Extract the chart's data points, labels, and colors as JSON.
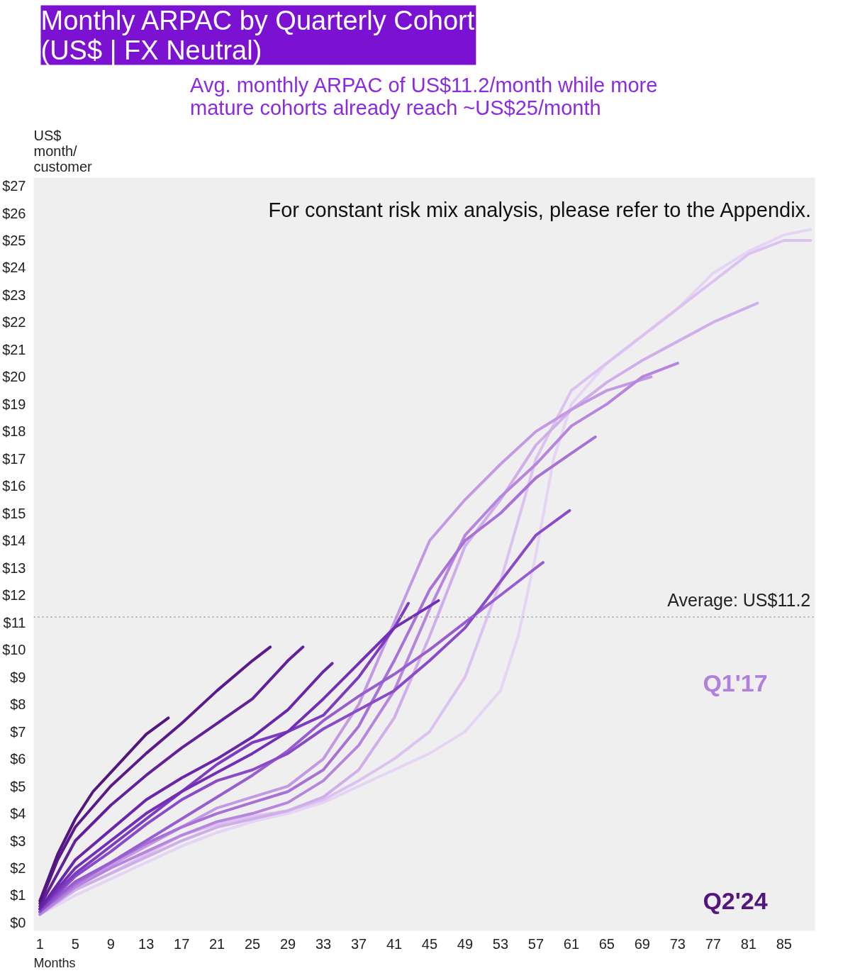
{
  "chart_data": {
    "type": "line",
    "title": "Monthly ARPAC by Quarterly Cohort\n(US$ | FX Neutral)",
    "subtitle": "Avg. monthly ARPAC of US$11.2/month while more\nmature cohorts already reach ~US$25/month",
    "ylabel": "US$\nmonth/\ncustomer",
    "xlabel": "Months",
    "annotations": [
      "For constant risk mix analysis, please refer to the Appendix.",
      "Q1'17",
      "Q2'24"
    ],
    "ref_lines": [
      {
        "axis": "y",
        "value": 11.2,
        "label": "Average: US$11.2",
        "color": "#999999",
        "line_style": "dotted"
      }
    ],
    "xlim": [
      0.3,
      88.5
    ],
    "xticks": [
      1,
      5,
      9,
      13,
      17,
      21,
      25,
      29,
      33,
      37,
      41,
      45,
      49,
      53,
      57,
      61,
      65,
      69,
      73,
      77,
      81,
      85
    ],
    "ylim": [
      -0.3,
      27.3
    ],
    "yticks": [
      {
        "value": 0,
        "label": "$0"
      },
      {
        "value": 1,
        "label": "$1"
      },
      {
        "value": 2,
        "label": "$2"
      },
      {
        "value": 3,
        "label": "$3"
      },
      {
        "value": 4,
        "label": "$4"
      },
      {
        "value": 5,
        "label": "$5"
      },
      {
        "value": 6,
        "label": "$6"
      },
      {
        "value": 7,
        "label": "$7"
      },
      {
        "value": 8,
        "label": "$8"
      },
      {
        "value": 9,
        "label": "$9"
      },
      {
        "value": 10,
        "label": "$10"
      },
      {
        "value": 11,
        "label": "$11"
      },
      {
        "value": 12,
        "label": "$12"
      },
      {
        "value": 13,
        "label": "$13"
      },
      {
        "value": 14,
        "label": "$14"
      },
      {
        "value": 15,
        "label": "$15"
      },
      {
        "value": 16,
        "label": "$16"
      },
      {
        "value": 17,
        "label": "$17"
      },
      {
        "value": 18,
        "label": "$18"
      },
      {
        "value": 19,
        "label": "$19"
      },
      {
        "value": 20,
        "label": "$20"
      },
      {
        "value": 21,
        "label": "$21"
      },
      {
        "value": 22,
        "label": "$22"
      },
      {
        "value": 23,
        "label": "$23"
      },
      {
        "value": 24,
        "label": "$24"
      },
      {
        "value": 25,
        "label": "$25"
      },
      {
        "value": 26,
        "label": "$26"
      },
      {
        "value": 27,
        "label": "$27"
      }
    ],
    "grid": false,
    "marker": "none",
    "line_style": "solid",
    "series": [
      {
        "color": "#e6d4f5",
        "x": [
          1,
          5,
          9,
          13,
          17,
          21,
          25,
          29,
          33,
          37,
          41,
          45,
          49,
          53,
          55,
          57,
          59,
          61,
          65,
          69,
          73,
          77,
          81,
          85,
          88
        ],
        "values": [
          0.3,
          1.0,
          1.6,
          2.2,
          2.8,
          3.3,
          3.7,
          4.0,
          4.4,
          5.0,
          5.6,
          6.2,
          7.0,
          8.5,
          10.5,
          13.5,
          17,
          19,
          20.5,
          21.5,
          22.5,
          23.8,
          24.6,
          25.2,
          25.4
        ]
      },
      {
        "color": "#dcc2f0",
        "x": [
          1,
          5,
          9,
          13,
          17,
          21,
          25,
          29,
          33,
          37,
          41,
          45,
          49,
          53,
          57,
          61,
          65,
          69,
          73,
          77,
          81,
          85,
          88
        ],
        "values": [
          0.3,
          1.2,
          1.8,
          2.5,
          3.2,
          3.6,
          3.9,
          4.1,
          4.5,
          5.2,
          6.0,
          7.0,
          9.0,
          12.5,
          17.0,
          19.5,
          20.5,
          21.5,
          22.5,
          23.5,
          24.5,
          25.0,
          25.0
        ]
      },
      {
        "color": "#cfaeea",
        "x": [
          1,
          5,
          9,
          13,
          17,
          21,
          25,
          29,
          33,
          37,
          41,
          45,
          49,
          53,
          57,
          61,
          65,
          69,
          73,
          77,
          82
        ],
        "values": [
          0.3,
          1.2,
          1.8,
          2.4,
          3.0,
          3.5,
          3.8,
          4.1,
          4.6,
          5.6,
          7.5,
          10.5,
          13.8,
          15.5,
          17.5,
          18.8,
          19.8,
          20.6,
          21.3,
          22.0,
          22.7
        ]
      },
      {
        "color": "#c399e4",
        "x": [
          1,
          5,
          9,
          13,
          17,
          21,
          25,
          29,
          33,
          37,
          41,
          45,
          49,
          53,
          57,
          61,
          65,
          70
        ],
        "values": [
          0.4,
          1.4,
          2.1,
          2.8,
          3.5,
          4.2,
          4.6,
          5.0,
          6.0,
          8.0,
          11.0,
          14.0,
          15.5,
          16.8,
          18.0,
          18.8,
          19.5,
          20.0
        ]
      },
      {
        "color": "#b685dd",
        "x": [
          1,
          5,
          9,
          13,
          17,
          21,
          25,
          29,
          33,
          37,
          41,
          45,
          49,
          53,
          57,
          61,
          65,
          69,
          73
        ],
        "values": [
          0.3,
          1.3,
          2.0,
          2.6,
          3.2,
          3.7,
          4.0,
          4.4,
          5.2,
          6.5,
          8.5,
          11.5,
          14.2,
          15.6,
          16.8,
          18.2,
          19.0,
          20.0,
          20.5
        ]
      },
      {
        "color": "#a771d6",
        "x": [
          1,
          5,
          9,
          13,
          17,
          21,
          25,
          29,
          33,
          37,
          41,
          45,
          49,
          53,
          57,
          61,
          63.7
        ],
        "values": [
          0.4,
          1.4,
          2.2,
          2.9,
          3.5,
          4.0,
          4.4,
          4.8,
          5.6,
          7.2,
          9.6,
          12.2,
          14.0,
          15.0,
          16.3,
          17.2,
          17.8
        ]
      },
      {
        "color": "#985dcf",
        "x": [
          1,
          5,
          9,
          13,
          17,
          21,
          25,
          29,
          33,
          37,
          41,
          45,
          49,
          53,
          57.8
        ],
        "values": [
          0.4,
          1.5,
          2.2,
          3.0,
          3.8,
          4.6,
          5.4,
          6.3,
          7.4,
          8.3,
          9.1,
          10.0,
          11.0,
          12.0,
          13.2
        ]
      },
      {
        "color": "#8a4bc8",
        "x": [
          1,
          5,
          9,
          13,
          17,
          21,
          25,
          29,
          33,
          37,
          41,
          45,
          49,
          53,
          57,
          60.8
        ],
        "values": [
          0.4,
          1.7,
          2.6,
          3.6,
          4.5,
          5.2,
          5.6,
          6.2,
          7.1,
          7.8,
          8.5,
          9.6,
          10.8,
          12.5,
          14.2,
          15.1
        ]
      },
      {
        "color": "#7d3bc0",
        "x": [
          1,
          5,
          9,
          13,
          17,
          21,
          25,
          29,
          33,
          37,
          41,
          42.6
        ],
        "values": [
          0.5,
          1.8,
          2.8,
          3.8,
          4.8,
          5.8,
          6.6,
          7.0,
          7.6,
          9.0,
          10.8,
          11.7
        ]
      },
      {
        "color": "#722fb5",
        "x": [
          1,
          5,
          9,
          13,
          17,
          21,
          25,
          29,
          33,
          37,
          41,
          45,
          46
        ],
        "values": [
          0.5,
          2.0,
          3.0,
          4.0,
          4.8,
          5.5,
          6.2,
          7.0,
          8.2,
          9.5,
          10.8,
          11.6,
          11.8
        ]
      },
      {
        "color": "#6a26a8",
        "x": [
          1,
          5,
          9,
          13,
          17,
          21,
          25,
          29,
          33,
          34
        ],
        "values": [
          0.5,
          2.3,
          3.4,
          4.5,
          5.3,
          6.0,
          6.8,
          7.8,
          9.2,
          9.5
        ]
      },
      {
        "color": "#62209a",
        "x": [
          1,
          5,
          9,
          13,
          17,
          21,
          25,
          29,
          30.7
        ],
        "values": [
          0.6,
          3.0,
          4.3,
          5.4,
          6.4,
          7.3,
          8.2,
          9.6,
          10.1
        ]
      },
      {
        "color": "#5a1a8c",
        "x": [
          1,
          3,
          5,
          9,
          13,
          17,
          21,
          25,
          27
        ],
        "values": [
          0.7,
          2.3,
          3.5,
          5.0,
          6.2,
          7.3,
          8.5,
          9.6,
          10.1
        ]
      },
      {
        "color": "#52167e",
        "x": [
          1,
          3,
          5,
          7,
          9,
          11,
          13,
          15.5
        ],
        "values": [
          0.8,
          2.5,
          3.8,
          4.8,
          5.5,
          6.2,
          6.9,
          7.5
        ]
      }
    ]
  }
}
